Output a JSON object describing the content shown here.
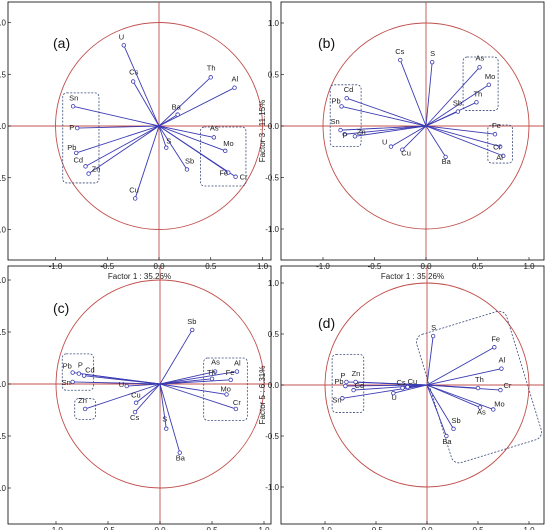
{
  "chart_data": [
    {
      "type": "scatter",
      "panel_label": "(a)",
      "xlabel": "Factor 1 : 35.26%",
      "ylabel": "Factor 2 : 16.57%",
      "xlim": [
        -1.0,
        1.0
      ],
      "ylim": [
        -1.0,
        1.0
      ],
      "xticks": [
        "-1.0",
        "-0.5",
        "0.0",
        "0.5",
        "1.0"
      ],
      "yticks": [
        "-1.0",
        "-0.5",
        "0.0",
        "0.5",
        "1.0"
      ],
      "unit_circle": true,
      "points": [
        {
          "label": "U",
          "x": -0.34,
          "y": 0.78
        },
        {
          "label": "Cs",
          "x": -0.25,
          "y": 0.43
        },
        {
          "label": "Th",
          "x": 0.5,
          "y": 0.47
        },
        {
          "label": "Al",
          "x": 0.73,
          "y": 0.37
        },
        {
          "label": "Ba",
          "x": 0.18,
          "y": 0.11
        },
        {
          "label": "Sn",
          "x": -0.83,
          "y": 0.19
        },
        {
          "label": "P",
          "x": -0.79,
          "y": -0.02
        },
        {
          "label": "Pb",
          "x": -0.8,
          "y": -0.26
        },
        {
          "label": "Cd",
          "x": -0.71,
          "y": -0.39
        },
        {
          "label": "Zn",
          "x": -0.68,
          "y": -0.46
        },
        {
          "label": "As",
          "x": 0.53,
          "y": -0.11
        },
        {
          "label": "Mo",
          "x": 0.64,
          "y": -0.24
        },
        {
          "label": "S",
          "x": 0.07,
          "y": -0.21
        },
        {
          "label": "Sb",
          "x": 0.27,
          "y": -0.42
        },
        {
          "label": "Fe",
          "x": 0.67,
          "y": -0.45
        },
        {
          "label": "Cr",
          "x": 0.74,
          "y": -0.49
        },
        {
          "label": "Cu",
          "x": -0.23,
          "y": -0.7
        }
      ],
      "groups": [
        {
          "label": "Sn,P,Pb,Cd,Zn",
          "x0": -0.93,
          "x1": -0.58,
          "y0": -0.55,
          "y1": 0.32
        },
        {
          "label": "As,Mo,Fe,Cr",
          "x0": 0.4,
          "x1": 0.84,
          "y0": -0.58,
          "y1": -0.01
        }
      ]
    },
    {
      "type": "scatter",
      "panel_label": "(b)",
      "xlabel": "Factor 1 : 35.26%",
      "ylabel": "Factor 3 : 11.15%",
      "xlim": [
        -1.0,
        1.0
      ],
      "ylim": [
        -1.0,
        1.0
      ],
      "xticks": [
        "-1.0",
        "-0.5",
        "0.0",
        "0.5",
        "1.0"
      ],
      "yticks": [
        "-1.0",
        "-0.5",
        "0.0",
        "0.5",
        "1.0"
      ],
      "unit_circle": true,
      "points": [
        {
          "label": "Cs",
          "x": -0.25,
          "y": 0.64
        },
        {
          "label": "S",
          "x": 0.06,
          "y": 0.62
        },
        {
          "label": "As",
          "x": 0.52,
          "y": 0.57
        },
        {
          "label": "Mo",
          "x": 0.61,
          "y": 0.4
        },
        {
          "label": "Th",
          "x": 0.49,
          "y": 0.23
        },
        {
          "label": "Sb",
          "x": 0.31,
          "y": 0.14
        },
        {
          "label": "Cd",
          "x": -0.77,
          "y": 0.27
        },
        {
          "label": "Pb",
          "x": -0.82,
          "y": 0.19
        },
        {
          "label": "Sn",
          "x": -0.83,
          "y": -0.04
        },
        {
          "label": "P",
          "x": -0.79,
          "y": -0.08
        },
        {
          "label": "Zn",
          "x": -0.69,
          "y": -0.1
        },
        {
          "label": "U",
          "x": -0.34,
          "y": -0.2
        },
        {
          "label": "Cu",
          "x": -0.23,
          "y": -0.23
        },
        {
          "label": "Ba",
          "x": 0.19,
          "y": -0.3
        },
        {
          "label": "Fe",
          "x": 0.67,
          "y": -0.08
        },
        {
          "label": "Cr",
          "x": 0.72,
          "y": -0.2
        },
        {
          "label": "Al",
          "x": 0.75,
          "y": -0.29
        }
      ],
      "groups": [
        {
          "label": "Cd,Pb,Sn,P,Zn",
          "x0": -0.93,
          "x1": -0.63,
          "y0": -0.2,
          "y1": 0.4
        },
        {
          "label": "As,Mo,Th",
          "x0": 0.36,
          "x1": 0.7,
          "y0": 0.15,
          "y1": 0.67
        },
        {
          "label": "Fe,Cr,Al",
          "x0": 0.6,
          "x1": 0.84,
          "y0": -0.36,
          "y1": 0.01
        }
      ]
    },
    {
      "type": "scatter",
      "panel_label": "(c)",
      "xlabel": "Factor 1 : 35.26%",
      "ylabel": "Factor 4 : 7.49%",
      "xlim": [
        -1.0,
        1.0
      ],
      "ylim": [
        -1.0,
        1.0
      ],
      "xticks": [
        "-1.0",
        "-0.5",
        "0.0",
        "0.5",
        "1.0"
      ],
      "yticks": [
        "-1.0",
        "-0.5",
        "0.0",
        "0.5",
        "1.0"
      ],
      "unit_circle": true,
      "points": [
        {
          "label": "Sb",
          "x": 0.31,
          "y": 0.52
        },
        {
          "label": "Pb",
          "x": -0.84,
          "y": 0.11
        },
        {
          "label": "P",
          "x": -0.78,
          "y": 0.1
        },
        {
          "label": "Cd",
          "x": -0.73,
          "y": 0.08
        },
        {
          "label": "Sn",
          "x": -0.84,
          "y": 0.02
        },
        {
          "label": "U",
          "x": -0.32,
          "y": -0.02
        },
        {
          "label": "Zn",
          "x": -0.72,
          "y": -0.24
        },
        {
          "label": "Cu",
          "x": -0.23,
          "y": -0.18
        },
        {
          "label": "Cs",
          "x": -0.24,
          "y": -0.27
        },
        {
          "label": "S",
          "x": 0.06,
          "y": -0.43
        },
        {
          "label": "Ba",
          "x": 0.19,
          "y": -0.66
        },
        {
          "label": "As",
          "x": 0.53,
          "y": 0.12
        },
        {
          "label": "Al",
          "x": 0.74,
          "y": 0.12
        },
        {
          "label": "Th",
          "x": 0.5,
          "y": 0.05
        },
        {
          "label": "Fe",
          "x": 0.68,
          "y": 0.04
        },
        {
          "label": "Mo",
          "x": 0.64,
          "y": -0.1
        },
        {
          "label": "Cr",
          "x": 0.73,
          "y": -0.24
        }
      ],
      "groups": [
        {
          "label": "Pb,P,Cd,Sn",
          "x0": -0.94,
          "x1": -0.64,
          "y0": -0.06,
          "y1": 0.29
        },
        {
          "label": "Zn",
          "x0": -0.82,
          "x1": -0.62,
          "y0": -0.34,
          "y1": -0.14
        },
        {
          "label": "As,Al,Th,Fe,Mo,Cr",
          "x0": 0.42,
          "x1": 0.84,
          "y0": -0.35,
          "y1": 0.25
        }
      ]
    },
    {
      "type": "scatter",
      "panel_label": "(d)",
      "xlabel": "Factor 1 : 35.26%",
      "ylabel": "Factor 5 : 6.31%",
      "xlim": [
        -1.0,
        1.0
      ],
      "ylim": [
        -1.0,
        1.0
      ],
      "xticks": [
        "-1.0",
        "-0.5",
        "0.0",
        "0.5",
        "1.0"
      ],
      "yticks": [
        "-1.0",
        "-0.5",
        "0.0",
        "0.5",
        "1.0"
      ],
      "unit_circle": true,
      "points": [
        {
          "label": "S",
          "x": 0.06,
          "y": 0.48
        },
        {
          "label": "Fe",
          "x": 0.66,
          "y": 0.37
        },
        {
          "label": "Al",
          "x": 0.73,
          "y": 0.16
        },
        {
          "label": "P",
          "x": -0.79,
          "y": 0.03
        },
        {
          "label": "Zn",
          "x": -0.7,
          "y": 0.03
        },
        {
          "label": "Pb",
          "x": -0.8,
          "y": -0.01
        },
        {
          "label": "Cd",
          "x": -0.72,
          "y": -0.05
        },
        {
          "label": "Sn",
          "x": -0.83,
          "y": -0.13
        },
        {
          "label": "Cs",
          "x": -0.24,
          "y": -0.03
        },
        {
          "label": "Cu",
          "x": -0.19,
          "y": -0.02
        },
        {
          "label": "U",
          "x": -0.33,
          "y": -0.08
        },
        {
          "label": "Th",
          "x": 0.5,
          "y": -0.03
        },
        {
          "label": "Cr",
          "x": 0.72,
          "y": -0.05
        },
        {
          "label": "As",
          "x": 0.52,
          "y": -0.22
        },
        {
          "label": "Mo",
          "x": 0.65,
          "y": -0.24
        },
        {
          "label": "Sb",
          "x": 0.26,
          "y": -0.43
        },
        {
          "label": "Ba",
          "x": 0.19,
          "y": -0.5
        }
      ],
      "groups": [
        {
          "label": "P,Zn,Pb,Cd,Sn",
          "x0": -0.93,
          "x1": -0.62,
          "y0": -0.27,
          "y1": 0.3
        },
        {
          "label": "Fe,Al,Th,Cr,As,Mo,Sb,Ba",
          "rotated": true
        }
      ]
    }
  ]
}
